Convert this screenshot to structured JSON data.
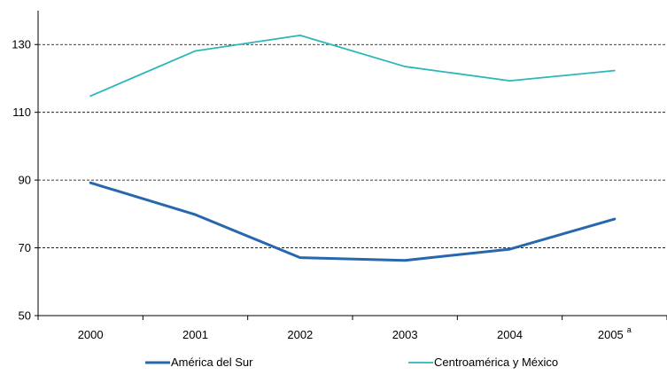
{
  "chart_data": {
    "type": "line",
    "categories": [
      "2000",
      "2001",
      "2002",
      "2003",
      "2004",
      "2005"
    ],
    "category_labels": [
      {
        "text": "2000",
        "sup": ""
      },
      {
        "text": "2001",
        "sup": ""
      },
      {
        "text": "2002",
        "sup": ""
      },
      {
        "text": "2003",
        "sup": ""
      },
      {
        "text": "2004",
        "sup": ""
      },
      {
        "text": "2005",
        "sup": "a"
      }
    ],
    "series": [
      {
        "name": "América del Sur",
        "values": [
          89.2,
          79.8,
          67.1,
          66.3,
          69.6,
          78.5
        ],
        "color": "#2767ae"
      },
      {
        "name": "Centroamérica y México",
        "values": [
          114.8,
          128.1,
          132.7,
          123.5,
          119.3,
          122.3
        ],
        "color": "#2ab7b9"
      }
    ],
    "ylim": [
      50,
      140
    ],
    "y_ticks": [
      "50",
      "70",
      "90",
      "110",
      "130"
    ],
    "grid": "horizontal dashed at major ticks",
    "legend": "bottom",
    "title": "",
    "xlabel": "",
    "ylabel": ""
  }
}
